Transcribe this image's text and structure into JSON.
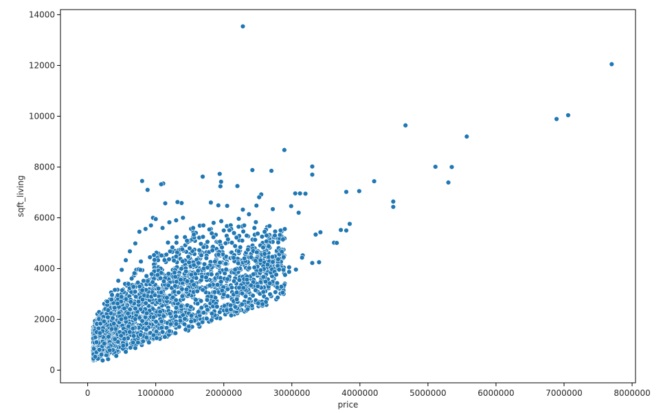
{
  "chart_data": {
    "type": "scatter",
    "title": "",
    "xlabel": "price",
    "ylabel": "sqft_living",
    "xlim": [
      -400000,
      8050000
    ],
    "ylim": [
      -500,
      14200
    ],
    "x_ticks": [
      0,
      1000000,
      2000000,
      3000000,
      4000000,
      5000000,
      6000000,
      7000000,
      8000000
    ],
    "x_tick_labels": [
      "0",
      "1000000",
      "2000000",
      "3000000",
      "4000000",
      "5000000",
      "6000000",
      "7000000",
      "8000000"
    ],
    "y_ticks": [
      0,
      2000,
      4000,
      6000,
      8000,
      10000,
      12000,
      14000
    ],
    "y_tick_labels": [
      "0",
      "2000",
      "4000",
      "6000",
      "8000",
      "10000",
      "12000",
      "14000"
    ],
    "grid": false,
    "colors": {
      "point_fill": "#1f77b4",
      "point_stroke": "#ffffff",
      "axis": "#000000",
      "text": "#262626"
    },
    "series": [
      {
        "points": [
          [
            7700000,
            12050
          ],
          [
            7060000,
            10040
          ],
          [
            6890000,
            9890
          ],
          [
            5570000,
            9200
          ],
          [
            4670000,
            9640
          ],
          [
            2280000,
            13540
          ],
          [
            5110000,
            8010
          ],
          [
            5350000,
            8000
          ],
          [
            5300000,
            7390
          ],
          [
            4490000,
            6640
          ],
          [
            4490000,
            6430
          ],
          [
            4210000,
            7440
          ],
          [
            3990000,
            7050
          ],
          [
            3800000,
            7020
          ],
          [
            3300000,
            8020
          ],
          [
            3300000,
            7700
          ],
          [
            2890000,
            8670
          ],
          [
            2700000,
            7850
          ],
          [
            2420000,
            7880
          ],
          [
            2200000,
            7250
          ],
          [
            1940000,
            7730
          ],
          [
            1960000,
            7420
          ],
          [
            1950000,
            7240
          ],
          [
            1690000,
            7620
          ],
          [
            1110000,
            7350
          ],
          [
            1080000,
            7320
          ],
          [
            800000,
            7450
          ],
          [
            880000,
            7100
          ],
          [
            3620000,
            5020
          ],
          [
            3660000,
            5010
          ],
          [
            3720000,
            5520
          ],
          [
            3800000,
            5500
          ],
          [
            3850000,
            5760
          ],
          [
            3420000,
            5430
          ],
          [
            3350000,
            5340
          ],
          [
            3160000,
            4520
          ],
          [
            3060000,
            3960
          ],
          [
            2900000,
            3750
          ],
          [
            2960000,
            3870
          ],
          [
            3100000,
            6200
          ],
          [
            3120000,
            6960
          ],
          [
            3200000,
            6950
          ],
          [
            3050000,
            6960
          ],
          [
            2990000,
            6460
          ],
          [
            2720000,
            6340
          ],
          [
            2550000,
            6920
          ],
          [
            2520000,
            6810
          ],
          [
            2480000,
            6480
          ],
          [
            2370000,
            6140
          ],
          [
            2280000,
            6320
          ],
          [
            2220000,
            5960
          ],
          [
            2050000,
            6470
          ],
          [
            1920000,
            6490
          ],
          [
            1810000,
            6600
          ],
          [
            1380000,
            6580
          ],
          [
            1320000,
            6620
          ],
          [
            1140000,
            6570
          ],
          [
            960000,
            6000
          ],
          [
            3400000,
            4250
          ],
          [
            3300000,
            4220
          ],
          [
            3150000,
            4430
          ],
          [
            2960000,
            4050
          ],
          [
            2880000,
            4450
          ],
          [
            2800000,
            5030
          ],
          [
            2600000,
            4580
          ],
          [
            2720000,
            4260
          ],
          [
            2500000,
            3300
          ],
          [
            2400000,
            3340
          ],
          [
            2270000,
            3020
          ],
          [
            2190000,
            3060
          ],
          [
            2000000,
            2980
          ],
          [
            1900000,
            2500
          ],
          [
            1760000,
            2380
          ],
          [
            1520000,
            1920
          ],
          [
            1300000,
            1820
          ],
          [
            1100000,
            1500
          ],
          [
            900000,
            1090
          ],
          [
            700000,
            870
          ],
          [
            560000,
            720
          ],
          [
            420000,
            560
          ],
          [
            300000,
            430
          ],
          [
            220000,
            380
          ],
          [
            150000,
            450
          ],
          [
            110000,
            530
          ],
          [
            90000,
            840
          ],
          [
            130000,
            1100
          ],
          [
            180000,
            1460
          ],
          [
            240000,
            1920
          ],
          [
            300000,
            2360
          ],
          [
            350000,
            2780
          ],
          [
            400000,
            3160
          ],
          [
            450000,
            3520
          ],
          [
            500000,
            3950
          ],
          [
            560000,
            4330
          ],
          [
            620000,
            4680
          ],
          [
            700000,
            4990
          ],
          [
            760000,
            5450
          ],
          [
            850000,
            5560
          ],
          [
            930000,
            5700
          ],
          [
            1000000,
            5950
          ],
          [
            1100000,
            5600
          ],
          [
            1200000,
            5820
          ],
          [
            1300000,
            5900
          ],
          [
            1400000,
            6000
          ],
          [
            1550000,
            5600
          ],
          [
            1700000,
            5700
          ],
          [
            1850000,
            5800
          ],
          [
            2000000,
            5500
          ],
          [
            2150000,
            5400
          ],
          [
            2300000,
            5700
          ],
          [
            2450000,
            5600
          ],
          [
            2600000,
            5450
          ],
          [
            2750000,
            5300
          ],
          [
            2870000,
            5150
          ]
        ]
      }
    ],
    "generated_cloud": {
      "count": 2400,
      "price_min": 80000,
      "price_max": 2900000,
      "note_free": true
    }
  }
}
